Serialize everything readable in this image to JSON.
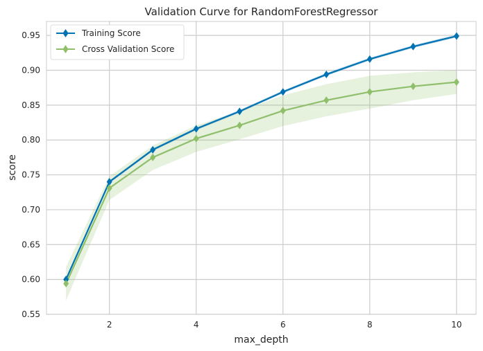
{
  "chart_data": {
    "type": "line",
    "title": "Validation Curve for RandomForestRegressor",
    "xlabel": "max_depth",
    "ylabel": "score",
    "x": [
      1,
      2,
      3,
      4,
      5,
      6,
      7,
      8,
      9,
      10
    ],
    "xlim": [
      0.55,
      10.45
    ],
    "ylim": [
      0.55,
      0.97
    ],
    "xticks": [
      2,
      4,
      6,
      8,
      10
    ],
    "yticks": [
      0.55,
      0.6,
      0.65,
      0.7,
      0.75,
      0.8,
      0.85,
      0.9,
      0.95
    ],
    "ytick_labels": [
      "0.55",
      "0.60",
      "0.65",
      "0.70",
      "0.75",
      "0.80",
      "0.85",
      "0.90",
      "0.95"
    ],
    "grid": true,
    "legend_position": "top-left",
    "series": [
      {
        "name": "Training Score",
        "color": "#0072b2",
        "values": [
          0.6,
          0.74,
          0.786,
          0.816,
          0.841,
          0.869,
          0.894,
          0.916,
          0.934,
          0.949
        ],
        "band_lower": [
          0.598,
          0.738,
          0.784,
          0.814,
          0.839,
          0.867,
          0.892,
          0.914,
          0.932,
          0.947
        ],
        "band_upper": [
          0.602,
          0.742,
          0.788,
          0.818,
          0.843,
          0.871,
          0.896,
          0.918,
          0.936,
          0.951
        ]
      },
      {
        "name": "Cross Validation Score",
        "color": "#8fbf6a",
        "values": [
          0.594,
          0.731,
          0.775,
          0.802,
          0.821,
          0.842,
          0.857,
          0.869,
          0.877,
          0.883
        ],
        "band_lower": [
          0.57,
          0.714,
          0.757,
          0.783,
          0.801,
          0.82,
          0.834,
          0.845,
          0.857,
          0.866
        ],
        "band_upper": [
          0.618,
          0.748,
          0.792,
          0.821,
          0.841,
          0.864,
          0.88,
          0.892,
          0.897,
          0.9
        ]
      }
    ]
  }
}
